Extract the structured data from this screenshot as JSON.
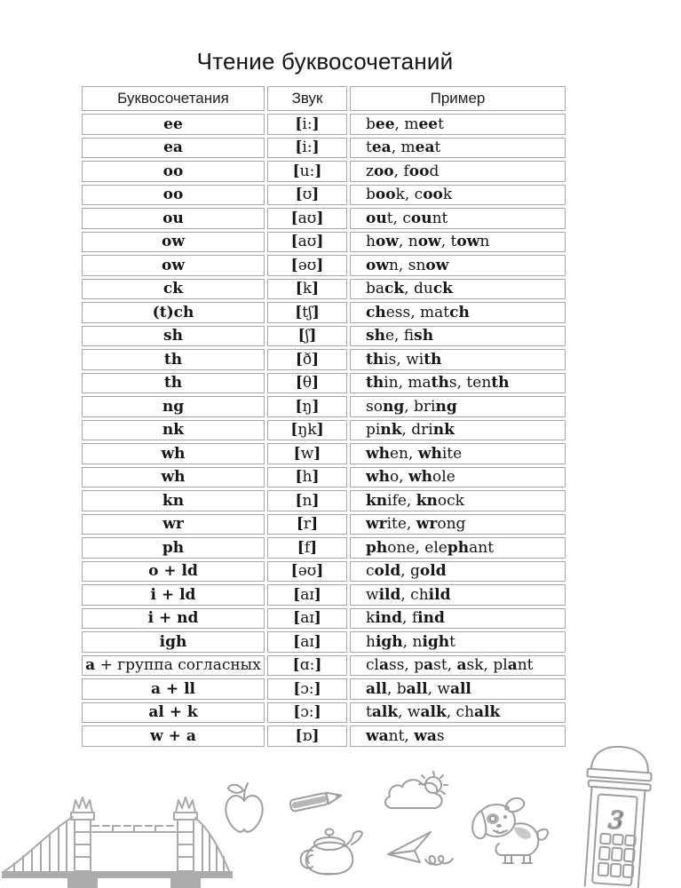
{
  "page": {
    "title": "Чтение буквосочетаний",
    "page_number": "3"
  },
  "colors": {
    "table_border": "#a8a8a8",
    "text": "#161616",
    "doodle_outline": "#9e9e9e",
    "bridge_fill": "#ababab"
  },
  "table": {
    "headers": [
      "Буквосочетания",
      "Звук",
      "Пример"
    ],
    "rows": [
      {
        "combo": "*ee*",
        "sound": "[i:]",
        "example": "b*ee*, m*ee*t"
      },
      {
        "combo": "*ea*",
        "sound": "[i:]",
        "example": "t*ea*, m*ea*t"
      },
      {
        "combo": "*oo*",
        "sound": "[u:]",
        "example": "z*oo*, f*oo*d"
      },
      {
        "combo": "*oo*",
        "sound": "[ʊ]",
        "example": "b*oo*k, c*oo*k"
      },
      {
        "combo": "*ou*",
        "sound": "[aʊ]",
        "example": "*ou*t, c*ou*nt"
      },
      {
        "combo": "*ow*",
        "sound": "[aʊ]",
        "example": "h*ow*, n*ow*, t*ow*n"
      },
      {
        "combo": "*ow*",
        "sound": "[əʊ]",
        "example": "*ow*n, sn*ow*"
      },
      {
        "combo": "*ck*",
        "sound": "[k]",
        "example": "ba*ck*, du*ck*"
      },
      {
        "combo": "*(t)ch*",
        "sound": "[tʃ]",
        "example": "*ch*ess, mat*ch*"
      },
      {
        "combo": "*sh*",
        "sound": "[ʃ]",
        "example": "*sh*e, fi*sh*"
      },
      {
        "combo": "*th*",
        "sound": "[ð]",
        "example": "*th*is, wi*th*"
      },
      {
        "combo": "*th*",
        "sound": "[θ]",
        "example": "*th*in, ma*th*s, ten*th*"
      },
      {
        "combo": "*ng*",
        "sound": "[ŋ]",
        "example": "so*ng*, bri*ng*"
      },
      {
        "combo": "*nk*",
        "sound": "[ŋk]",
        "example": "pi*nk*, dri*nk*"
      },
      {
        "combo": "*wh*",
        "sound": "[w]",
        "example": "*wh*en, *wh*ite"
      },
      {
        "combo": "*wh*",
        "sound": "[h]",
        "example": "*wh*o, *wh*ole"
      },
      {
        "combo": "*kn*",
        "sound": "[n]",
        "example": "*kn*ife, *kn*ock"
      },
      {
        "combo": "*wr*",
        "sound": "[r]",
        "example": "*wr*ite, *wr*ong"
      },
      {
        "combo": "*ph*",
        "sound": "[f]",
        "example": "*ph*one, ele*ph*ant"
      },
      {
        "combo": "*o + ld*",
        "sound": "[əʊ]",
        "example": "c*old*, g*old*"
      },
      {
        "combo": "*i + ld*",
        "sound": "[aɪ]",
        "example": "w*ild*, ch*ild*"
      },
      {
        "combo": "*i + nd*",
        "sound": "[aɪ]",
        "example": "k*ind*, f*ind*"
      },
      {
        "combo": "*igh*",
        "sound": "[aɪ]",
        "example": "h*igh*, n*igh*t"
      },
      {
        "combo": "*a* + группа согласных",
        "sound": "[ɑ:]",
        "example": "cl*a*ss, p*a*st, *a*sk, pl*a*nt"
      },
      {
        "combo": "*a + ll*",
        "sound": "[ɔ:]",
        "example": "*all*, b*all*, w*all*"
      },
      {
        "combo": "*al + k*",
        "sound": "[ɔ:]",
        "example": "t*alk*, w*alk*, ch*alk*"
      },
      {
        "combo": "*w + a*",
        "sound": "[ɒ]",
        "example": "*wa*nt, *wa*s"
      }
    ]
  },
  "illustrations": [
    "tower-bridge",
    "apple",
    "pencil",
    "teapot",
    "cloud-sun",
    "paper-plane",
    "dog",
    "phone-booth"
  ]
}
